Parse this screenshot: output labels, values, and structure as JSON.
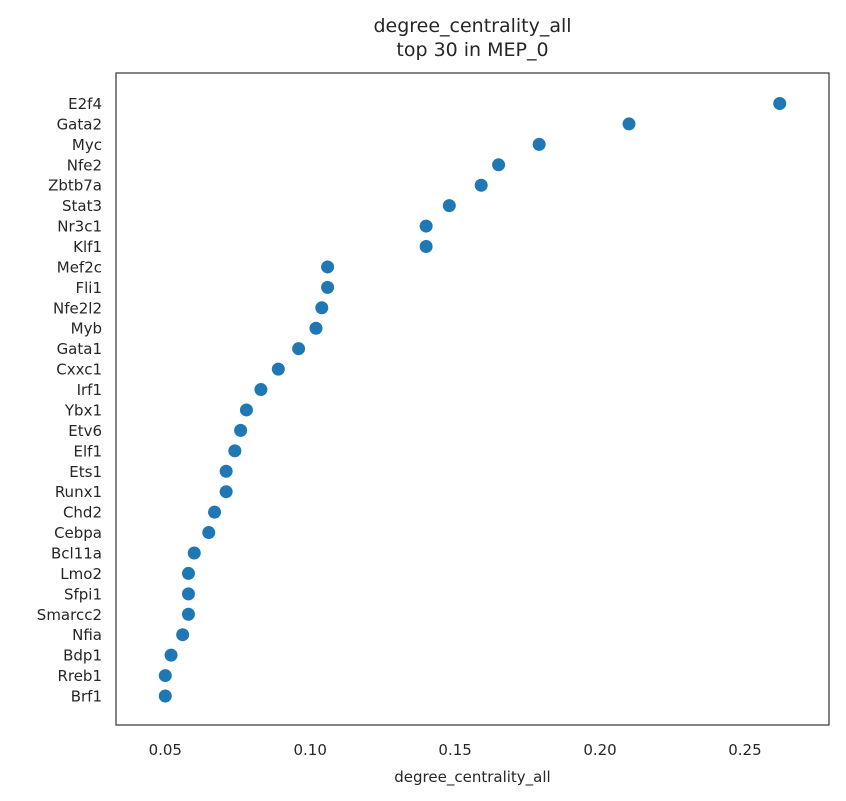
{
  "chart_data": {
    "type": "scatter",
    "title": "degree_centrality_all\ntop 30 in MEP_0",
    "title_lines": [
      "degree_centrality_all",
      "top 30 in MEP_0"
    ],
    "xlabel": "degree_centrality_all",
    "ylabel": "",
    "xlim": [
      0.033,
      0.279
    ],
    "xticks": [
      0.05,
      0.1,
      0.15,
      0.2,
      0.25
    ],
    "xtick_labels": [
      "0.05",
      "0.10",
      "0.15",
      "0.20",
      "0.25"
    ],
    "grid": false,
    "marker_color": "#1f77b4",
    "categories": [
      "E2f4",
      "Gata2",
      "Myc",
      "Nfe2",
      "Zbtb7a",
      "Stat3",
      "Nr3c1",
      "Klf1",
      "Mef2c",
      "Fli1",
      "Nfe2l2",
      "Myb",
      "Gata1",
      "Cxxc1",
      "Irf1",
      "Ybx1",
      "Etv6",
      "Elf1",
      "Ets1",
      "Runx1",
      "Chd2",
      "Cebpa",
      "Bcl11a",
      "Lmo2",
      "Sfpi1",
      "Smarcc2",
      "Nfia",
      "Bdp1",
      "Rreb1",
      "Brf1"
    ],
    "values": [
      0.262,
      0.21,
      0.179,
      0.165,
      0.159,
      0.148,
      0.14,
      0.14,
      0.106,
      0.106,
      0.104,
      0.102,
      0.096,
      0.089,
      0.083,
      0.078,
      0.076,
      0.074,
      0.071,
      0.071,
      0.067,
      0.065,
      0.06,
      0.058,
      0.058,
      0.058,
      0.056,
      0.052,
      0.05,
      0.05
    ]
  }
}
